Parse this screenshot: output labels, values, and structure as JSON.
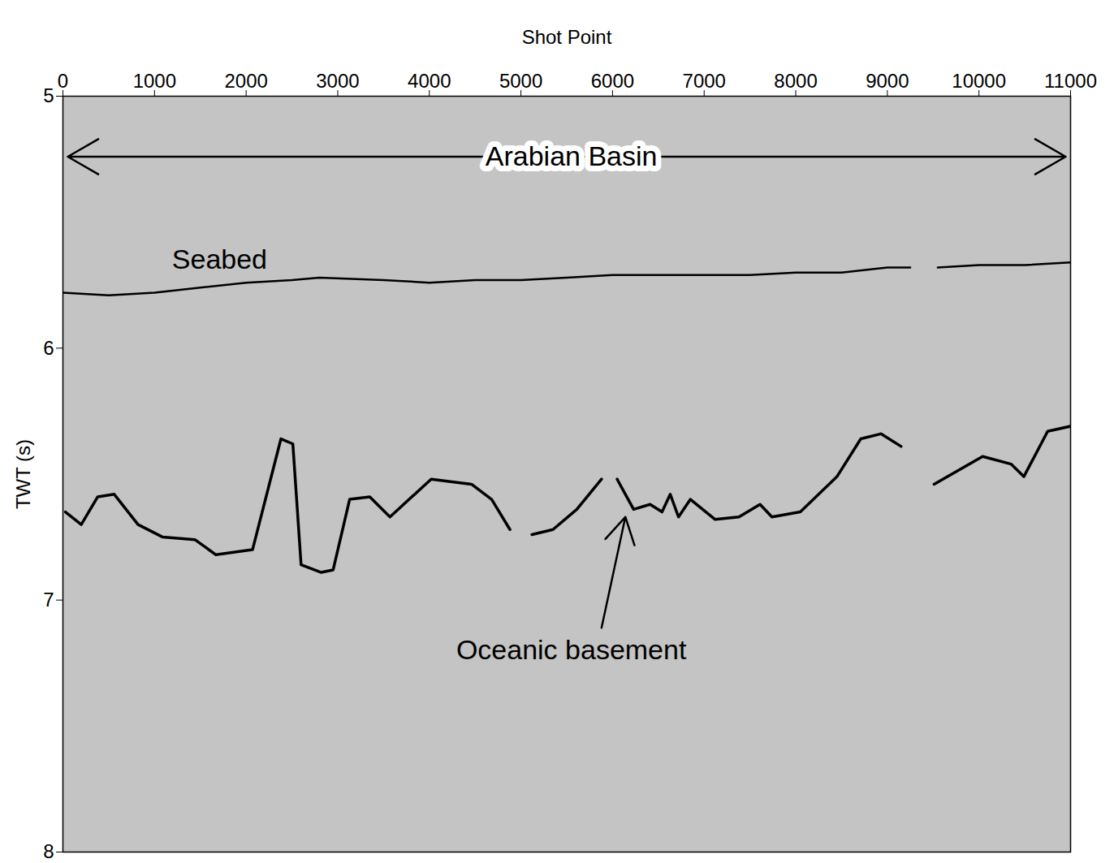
{
  "chart_data": {
    "type": "line",
    "x_label": "Shot Point",
    "y_label": "TWT (s)",
    "xlim": [
      0,
      11000
    ],
    "xticks": [
      0,
      1000,
      2000,
      3000,
      4000,
      5000,
      6000,
      7000,
      8000,
      9000,
      10000,
      11000
    ],
    "ylim": [
      5,
      8
    ],
    "yticks": [
      5,
      6,
      7,
      8
    ],
    "y_reversed": true,
    "series": [
      {
        "name": "Seabed",
        "color": "#000000",
        "label": {
          "x": 1710,
          "y": 5.65
        },
        "x": [
          0,
          500,
          1000,
          1500,
          2000,
          2500,
          2800,
          3500,
          4000,
          4500,
          5000,
          5500,
          6000,
          6500,
          7000,
          7500,
          8000,
          8500,
          9000,
          9250,
          9400,
          9550,
          10000,
          10500,
          11000
        ],
        "values": [
          5.78,
          5.79,
          5.78,
          5.76,
          5.74,
          5.73,
          5.72,
          5.73,
          5.74,
          5.73,
          5.73,
          5.72,
          5.71,
          5.71,
          5.71,
          5.71,
          5.7,
          5.7,
          5.68,
          5.68,
          null,
          5.68,
          5.67,
          5.67,
          5.66
        ]
      },
      {
        "name": "Oceanic basement",
        "color": "#000000",
        "label": {
          "x": 5550,
          "y": 7.2,
          "arrow": {
            "x1": 5880,
            "y1": 7.11,
            "x2": 6140,
            "y2": 6.67
          }
        },
        "x": [
          27,
          200,
          380,
          560,
          820,
          1090,
          1440,
          1670,
          2070,
          2380,
          2510,
          2600,
          2820,
          2950,
          3130,
          3350,
          3570,
          4020,
          4460,
          4680,
          4880,
          5000,
          5120,
          5350,
          5610,
          5880,
          5960,
          6050,
          6230,
          6410,
          6540,
          6630,
          6720,
          6850,
          7120,
          7380,
          7610,
          7740,
          8050,
          8450,
          8710,
          8930,
          9150,
          9330,
          9510,
          10040,
          10350,
          10490,
          10750,
          11000
        ],
        "values": [
          6.65,
          6.7,
          6.59,
          6.58,
          6.7,
          6.75,
          6.76,
          6.82,
          6.8,
          6.36,
          6.38,
          6.86,
          6.89,
          6.88,
          6.6,
          6.59,
          6.67,
          6.52,
          6.54,
          6.6,
          6.72,
          null,
          6.74,
          6.72,
          6.64,
          6.52,
          null,
          6.52,
          6.64,
          6.62,
          6.65,
          6.58,
          6.67,
          6.6,
          6.68,
          6.67,
          6.62,
          6.67,
          6.65,
          6.51,
          6.36,
          6.34,
          6.39,
          null,
          6.54,
          6.43,
          6.46,
          6.51,
          6.33,
          6.31
        ]
      }
    ],
    "annotations": [
      {
        "text": "Arabian Basin",
        "x": 5550,
        "y": 5.24,
        "double_arrow": true
      }
    ]
  }
}
